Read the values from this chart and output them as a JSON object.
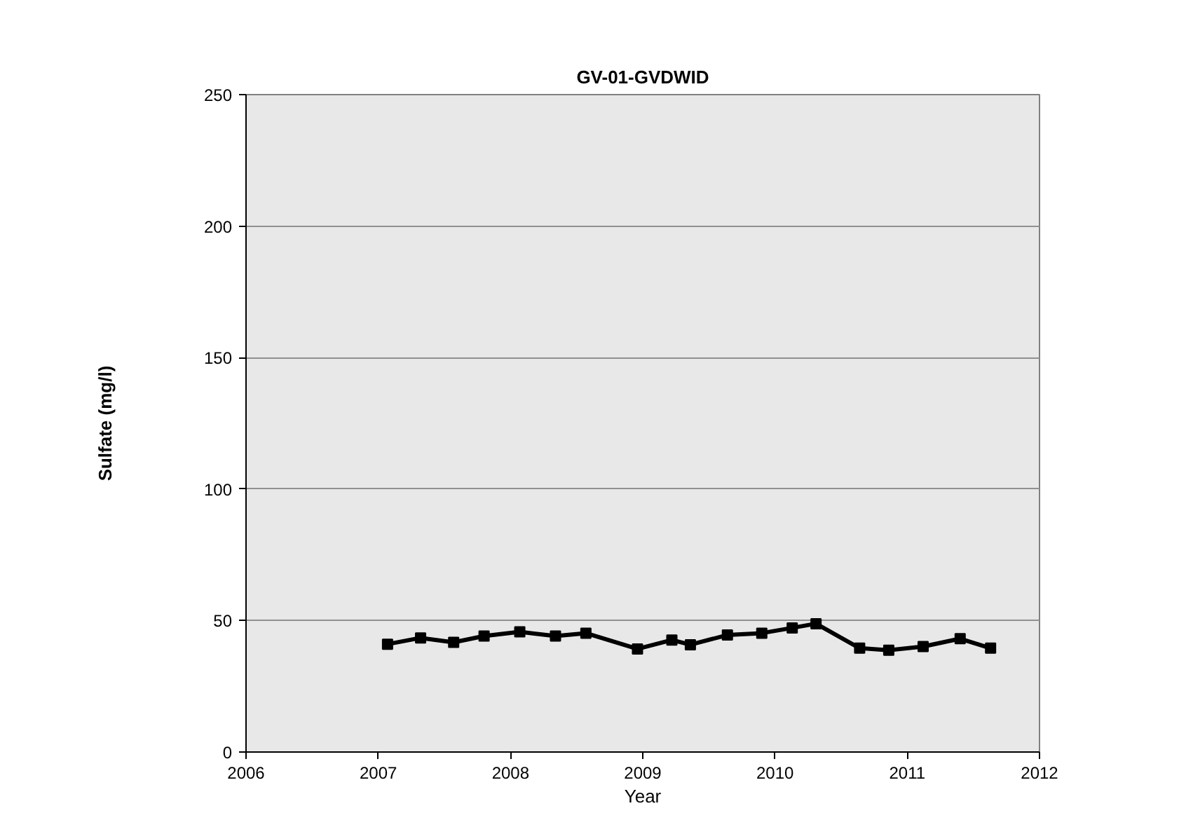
{
  "chart_data": {
    "type": "line",
    "title": "GV-01-GVDWID",
    "xlabel": "Year",
    "ylabel": "Sulfate (mg/l)",
    "x": [
      2007.07,
      2007.32,
      2007.57,
      2007.8,
      2008.07,
      2008.34,
      2008.57,
      2008.96,
      2009.22,
      2009.36,
      2009.64,
      2009.9,
      2010.13,
      2010.31,
      2010.64,
      2010.86,
      2011.12,
      2011.4,
      2011.63
    ],
    "series": [
      {
        "color": "#000000",
        "values": [
          41.0,
          43.4,
          41.7,
          44.1,
          45.7,
          44.1,
          45.2,
          39.2,
          42.6,
          40.8,
          44.5,
          45.2,
          47.2,
          48.8,
          39.5,
          38.7,
          40.1,
          43.1,
          39.5
        ]
      }
    ],
    "xlim": [
      2006,
      2012
    ],
    "xticks": [
      2006,
      2007,
      2008,
      2009,
      2010,
      2011,
      2012
    ],
    "ylim": [
      0,
      250
    ],
    "yticks": [
      0,
      50,
      100,
      150,
      200,
      250
    ],
    "grid": "y",
    "marker": "square",
    "line_style": "solid"
  }
}
